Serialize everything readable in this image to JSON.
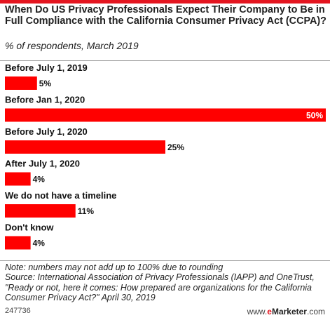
{
  "header": {
    "title": "When Do US Privacy Professionals Expect Their Company to Be in Full Compliance with the California Consumer Privacy Act (CCPA)?",
    "subtitle": "% of respondents, March 2019"
  },
  "colors": {
    "accent": "#e4151f",
    "bar": "#ff0000"
  },
  "chart_data": {
    "type": "bar",
    "orientation": "horizontal",
    "title": "When Do US Privacy Professionals Expect Their Company to Be in Full Compliance with the California Consumer Privacy Act (CCPA)?",
    "subtitle": "% of respondents, March 2019",
    "categories": [
      "Before July 1, 2019",
      "Before Jan 1, 2020",
      "Before July 1, 2020",
      "After July 1, 2020",
      "We do not have a timeline",
      "Don't know"
    ],
    "values": [
      5,
      50,
      25,
      4,
      11,
      4
    ],
    "value_labels": [
      "5%",
      "50%",
      "25%",
      "4%",
      "11%",
      "4%"
    ],
    "xlim": [
      0,
      50
    ],
    "grid": false
  },
  "footer": {
    "note": "Note: numbers may not add up to 100% due to rounding",
    "source": "Source: International Association of Privacy Professionals (IAPP) and OneTrust, \"Ready or not, here it comes: How prepared are organizations for the California Consumer Privacy Act?\" April 30, 2019",
    "chart_id": "247736",
    "credit_prefix": "www.",
    "credit_brand_e": "e",
    "credit_brand_rest": "Marketer",
    "credit_suffix": ".com"
  }
}
